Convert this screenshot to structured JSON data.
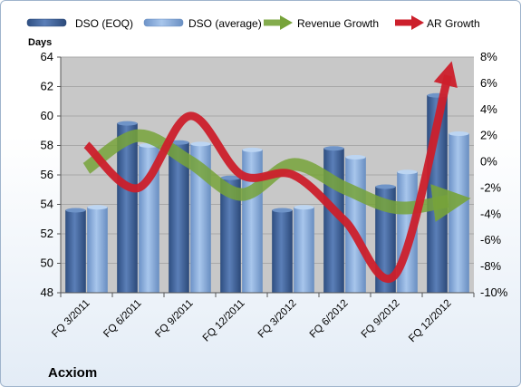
{
  "chart_data": {
    "type": "bar",
    "company_label": "Acxiom",
    "ylabel": "Days",
    "categories": [
      "FQ 3/2011",
      "FQ 6/2011",
      "FQ 9/2011",
      "FQ 12/2011",
      "FQ 3/2012",
      "FQ 6/2012",
      "FQ 9/2012",
      "FQ 12/2012"
    ],
    "ylim": [
      48,
      64
    ],
    "yticks": [
      48,
      50,
      52,
      54,
      56,
      58,
      60,
      62,
      64
    ],
    "y2lim": [
      -10,
      8
    ],
    "y2ticks": [
      "-10%",
      "-8%",
      "-6%",
      "-4%",
      "-2%",
      "0%",
      "2%",
      "4%",
      "6%",
      "8%"
    ],
    "bar_series": [
      {
        "name": "DSO (EOQ)",
        "values": [
          53.6,
          59.5,
          58.2,
          55.8,
          53.6,
          57.8,
          55.2,
          61.4
        ]
      },
      {
        "name": "DSO (average)",
        "values": [
          53.8,
          58.0,
          58.1,
          57.7,
          53.8,
          57.2,
          56.2,
          58.8
        ]
      }
    ],
    "line_series": [
      {
        "name": "Revenue Growth",
        "axis": "right",
        "values": [
          -0.5,
          2.0,
          0.0,
          -2.5,
          -0.2,
          -2.0,
          -3.5,
          -3.0
        ]
      },
      {
        "name": "AR Growth",
        "axis": "right",
        "values": [
          1.3,
          -2.0,
          3.5,
          -1.0,
          -1.0,
          -4.5,
          -8.5,
          6.6
        ]
      }
    ],
    "colors": {
      "plot_bg": "#c8c8c8",
      "bar_eoq": "#4a6da4",
      "bar_avg": "#8fb3e0",
      "revenue_growth": "#77a33a",
      "ar_growth": "#cc1f2b"
    },
    "grid": true,
    "legend_position": "top"
  }
}
